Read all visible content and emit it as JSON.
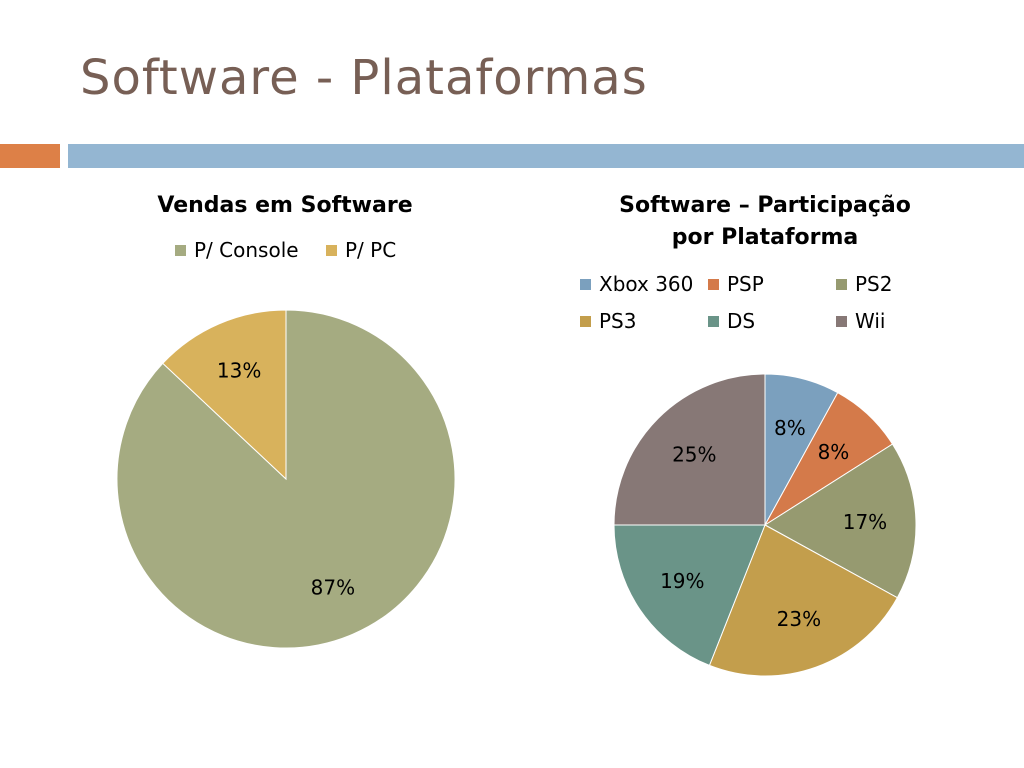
{
  "slide": {
    "title": "Software - Plataformas",
    "accent_color": "#dd8047",
    "bar_color": "#94b6d2"
  },
  "chart_data": [
    {
      "type": "pie",
      "title": "Vendas em Software",
      "legend_position": "top",
      "categories": [
        "P/ Console",
        "P/ PC"
      ],
      "values": [
        87,
        13
      ],
      "labels": [
        "87%",
        "13%"
      ],
      "colors": [
        "#a5ab81",
        "#d8b25c"
      ]
    },
    {
      "type": "pie",
      "title_line1": "Software – Participação",
      "title_line2": "por Plataforma",
      "legend_position": "top",
      "categories": [
        "Xbox 360",
        "PSP",
        "PS2",
        "PS3",
        "DS",
        "Wii"
      ],
      "values": [
        8,
        8,
        17,
        23,
        19,
        25
      ],
      "labels": [
        "8%",
        "8%",
        "17%",
        "23%",
        "19%",
        "25%"
      ],
      "colors": [
        "#7ba0be",
        "#d47a4a",
        "#969a70",
        "#c39e4c",
        "#6a9488",
        "#877876"
      ]
    }
  ]
}
